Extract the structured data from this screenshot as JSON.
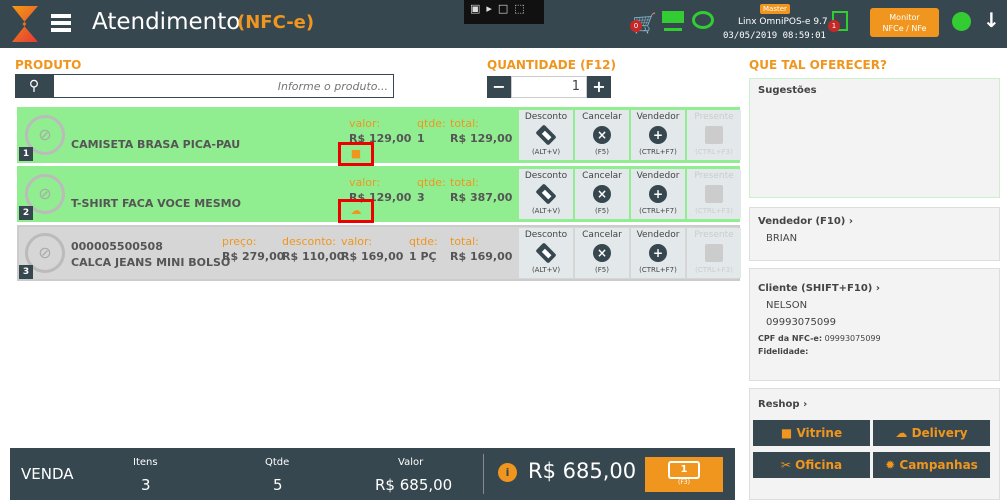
{
  "header": {
    "title": "Atendimento",
    "mode": "(NFC-e)",
    "master_badge": "Master",
    "app_version": "Linx OmniPOS-e  9.7",
    "datetime": "03/05/2019  08:59:01",
    "cart_count": "0",
    "doc_count": "1",
    "monitor_label_1": "Monitor",
    "monitor_label_2": "NFCe / NFe"
  },
  "product": {
    "label": "PRODUTO",
    "placeholder": "Informe o produto..."
  },
  "quantity": {
    "label": "QUANTIDADE (F12)",
    "value": "1"
  },
  "actions": {
    "discount": "Desconto",
    "discount_key": "(ALT+V)",
    "cancel": "Cancelar",
    "cancel_key": "(F5)",
    "seller": "Vendedor",
    "seller_key": "(CTRL+F7)",
    "gift": "Presente",
    "gift_key": "(CTRL+F3)"
  },
  "items": [
    {
      "index": "1",
      "name": "CAMISETA BRASA PICA-PAU",
      "valor_label": "valor:",
      "valor": "R$ 129,00",
      "qtde_label": "qtde:",
      "qtde": "1",
      "total_label": "total:",
      "total": "R$ 129,00",
      "tag_icon": "truck-icon"
    },
    {
      "index": "2",
      "name": "T-SHIRT FACA VOCE MESMO",
      "valor_label": "valor:",
      "valor": "R$ 129,00",
      "qtde_label": "qtde:",
      "qtde": "3",
      "total_label": "total:",
      "total": "R$ 387,00",
      "tag_icon": "cloud-download-icon"
    },
    {
      "index": "3",
      "code": "000005500508",
      "name": "CALCA JEANS MINI BOLSO",
      "preco_label": "preço:",
      "preco": "R$ 279,00",
      "desconto_label": "desconto:",
      "desconto": "R$ 110,00",
      "valor_label": "valor:",
      "valor": "R$ 169,00",
      "qtde_label": "qtde:",
      "qtde": "1 PÇ",
      "total_label": "total:",
      "total": "R$ 169,00"
    }
  ],
  "sidebar": {
    "title": "QUE TAL OFERECER?",
    "suggestions": "Sugestões",
    "seller_label": "Vendedor (F10)",
    "seller": "BRIAN",
    "client_label": "Cliente (SHIFT+F10)",
    "client_name": "NELSON",
    "client_doc": "09993075099",
    "cpf_label": "CPF da NFC-e:",
    "cpf": "09993075099",
    "fidelity_label": "Fidelidade:",
    "reshop": "Reshop",
    "buttons": [
      "Vitrine",
      "Delivery",
      "Oficina",
      "Campanhas"
    ]
  },
  "footer": {
    "sale": "VENDA",
    "items_label": "Itens",
    "items": "3",
    "qty_label": "Qtde",
    "qty": "5",
    "value_label": "Valor",
    "value": "R$ 685,00",
    "total": "R$ 685,00",
    "pay_key": "(F3)"
  },
  "colors": {
    "header": "#37474f",
    "accent": "#f0961e",
    "row_active": "#90ee90",
    "row_inactive": "#d6d6d6"
  }
}
